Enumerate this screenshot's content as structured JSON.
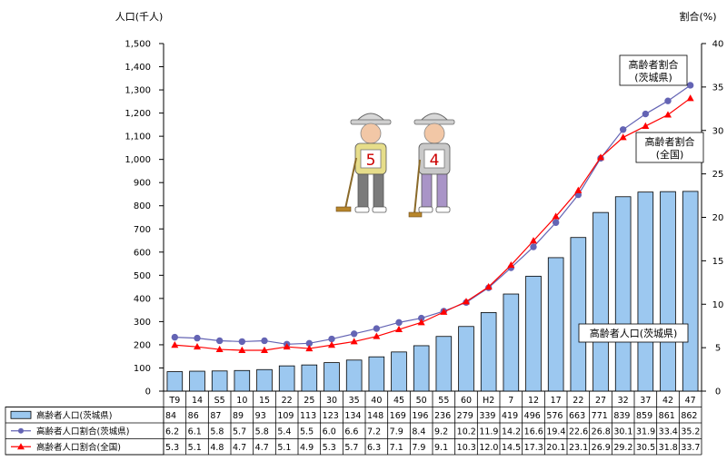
{
  "chart_data": {
    "type": "bar",
    "ylabel_left": "人口(千人)",
    "ylabel_right": "割合(%)",
    "ylim_left": [
      0,
      1500
    ],
    "ylim_right": [
      0,
      40
    ],
    "yticks_left": [
      "0",
      "100",
      "200",
      "300",
      "400",
      "500",
      "600",
      "700",
      "800",
      "900",
      "1,000",
      "1,100",
      "1,200",
      "1,300",
      "1,400",
      "1,500"
    ],
    "yticks_right": [
      "0",
      "5",
      "10",
      "15",
      "20",
      "25",
      "30",
      "35",
      "40"
    ],
    "categories": [
      "T9",
      "14",
      "S5",
      "10",
      "15",
      "22",
      "25",
      "30",
      "35",
      "40",
      "45",
      "50",
      "55",
      "60",
      "H2",
      "7",
      "12",
      "17",
      "22",
      "27",
      "32",
      "37",
      "42",
      "47"
    ],
    "series": [
      {
        "name": "高齢者人口(茨城県)",
        "kind": "bar",
        "axis": "left",
        "color": "#9cc8f0",
        "values": [
          84,
          86,
          87,
          89,
          93,
          109,
          113,
          123,
          134,
          148,
          169,
          196,
          236,
          279,
          339,
          419,
          496,
          576,
          663,
          771,
          839,
          859,
          861,
          862
        ]
      },
      {
        "name": "高齢者人口割合(茨城県)",
        "kind": "line",
        "axis": "right",
        "color": "#6464b4",
        "marker": "circle",
        "values": [
          6.2,
          6.1,
          5.8,
          5.7,
          5.8,
          5.4,
          5.5,
          6.0,
          6.6,
          7.2,
          7.9,
          8.4,
          9.2,
          10.2,
          11.9,
          14.2,
          16.6,
          19.4,
          22.6,
          26.8,
          30.1,
          31.9,
          33.4,
          35.2
        ]
      },
      {
        "name": "高齢者人口割合(全国)",
        "kind": "line",
        "axis": "right",
        "color": "#ff0000",
        "marker": "triangle",
        "values": [
          5.3,
          5.1,
          4.8,
          4.7,
          4.7,
          5.1,
          4.9,
          5.3,
          5.7,
          6.3,
          7.1,
          7.9,
          9.1,
          10.3,
          12.0,
          14.5,
          17.3,
          20.1,
          23.1,
          26.9,
          29.2,
          30.5,
          31.8,
          33.7
        ]
      }
    ],
    "table_rows": [
      {
        "label": "高齢者人口(茨城県)",
        "cells": [
          "84",
          "86",
          "87",
          "89",
          "93",
          "109",
          "113",
          "123",
          "134",
          "148",
          "169",
          "196",
          "236",
          "279",
          "339",
          "419",
          "496",
          "576",
          "663",
          "771",
          "839",
          "859",
          "861",
          "862"
        ]
      },
      {
        "label": "高齢者人口割合(茨城県)",
        "cells": [
          "6.2",
          "6.1",
          "5.8",
          "5.7",
          "5.8",
          "5.4",
          "5.5",
          "6.0",
          "6.6",
          "7.2",
          "7.9",
          "8.4",
          "9.2",
          "10.2",
          "11.9",
          "14.2",
          "16.6",
          "19.4",
          "22.6",
          "26.8",
          "30.1",
          "31.9",
          "33.4",
          "35.2"
        ]
      },
      {
        "label": "高齢者人口割合(全国)",
        "cells": [
          "5.3",
          "5.1",
          "4.8",
          "4.7",
          "4.7",
          "5.1",
          "4.9",
          "5.3",
          "5.7",
          "6.3",
          "7.1",
          "7.9",
          "9.1",
          "10.3",
          "12.0",
          "14.5",
          "17.3",
          "20.1",
          "23.1",
          "26.9",
          "29.2",
          "30.5",
          "31.8",
          "33.7"
        ]
      }
    ],
    "annotations": [
      {
        "lines": [
          "高齢者割合",
          "(茨城県)"
        ]
      },
      {
        "lines": [
          "高齢者割合",
          "(全国)"
        ]
      },
      {
        "lines": [
          "高齢者人口(茨城県)"
        ]
      }
    ],
    "illustration": {
      "numbers": [
        "5",
        "4"
      ]
    }
  }
}
